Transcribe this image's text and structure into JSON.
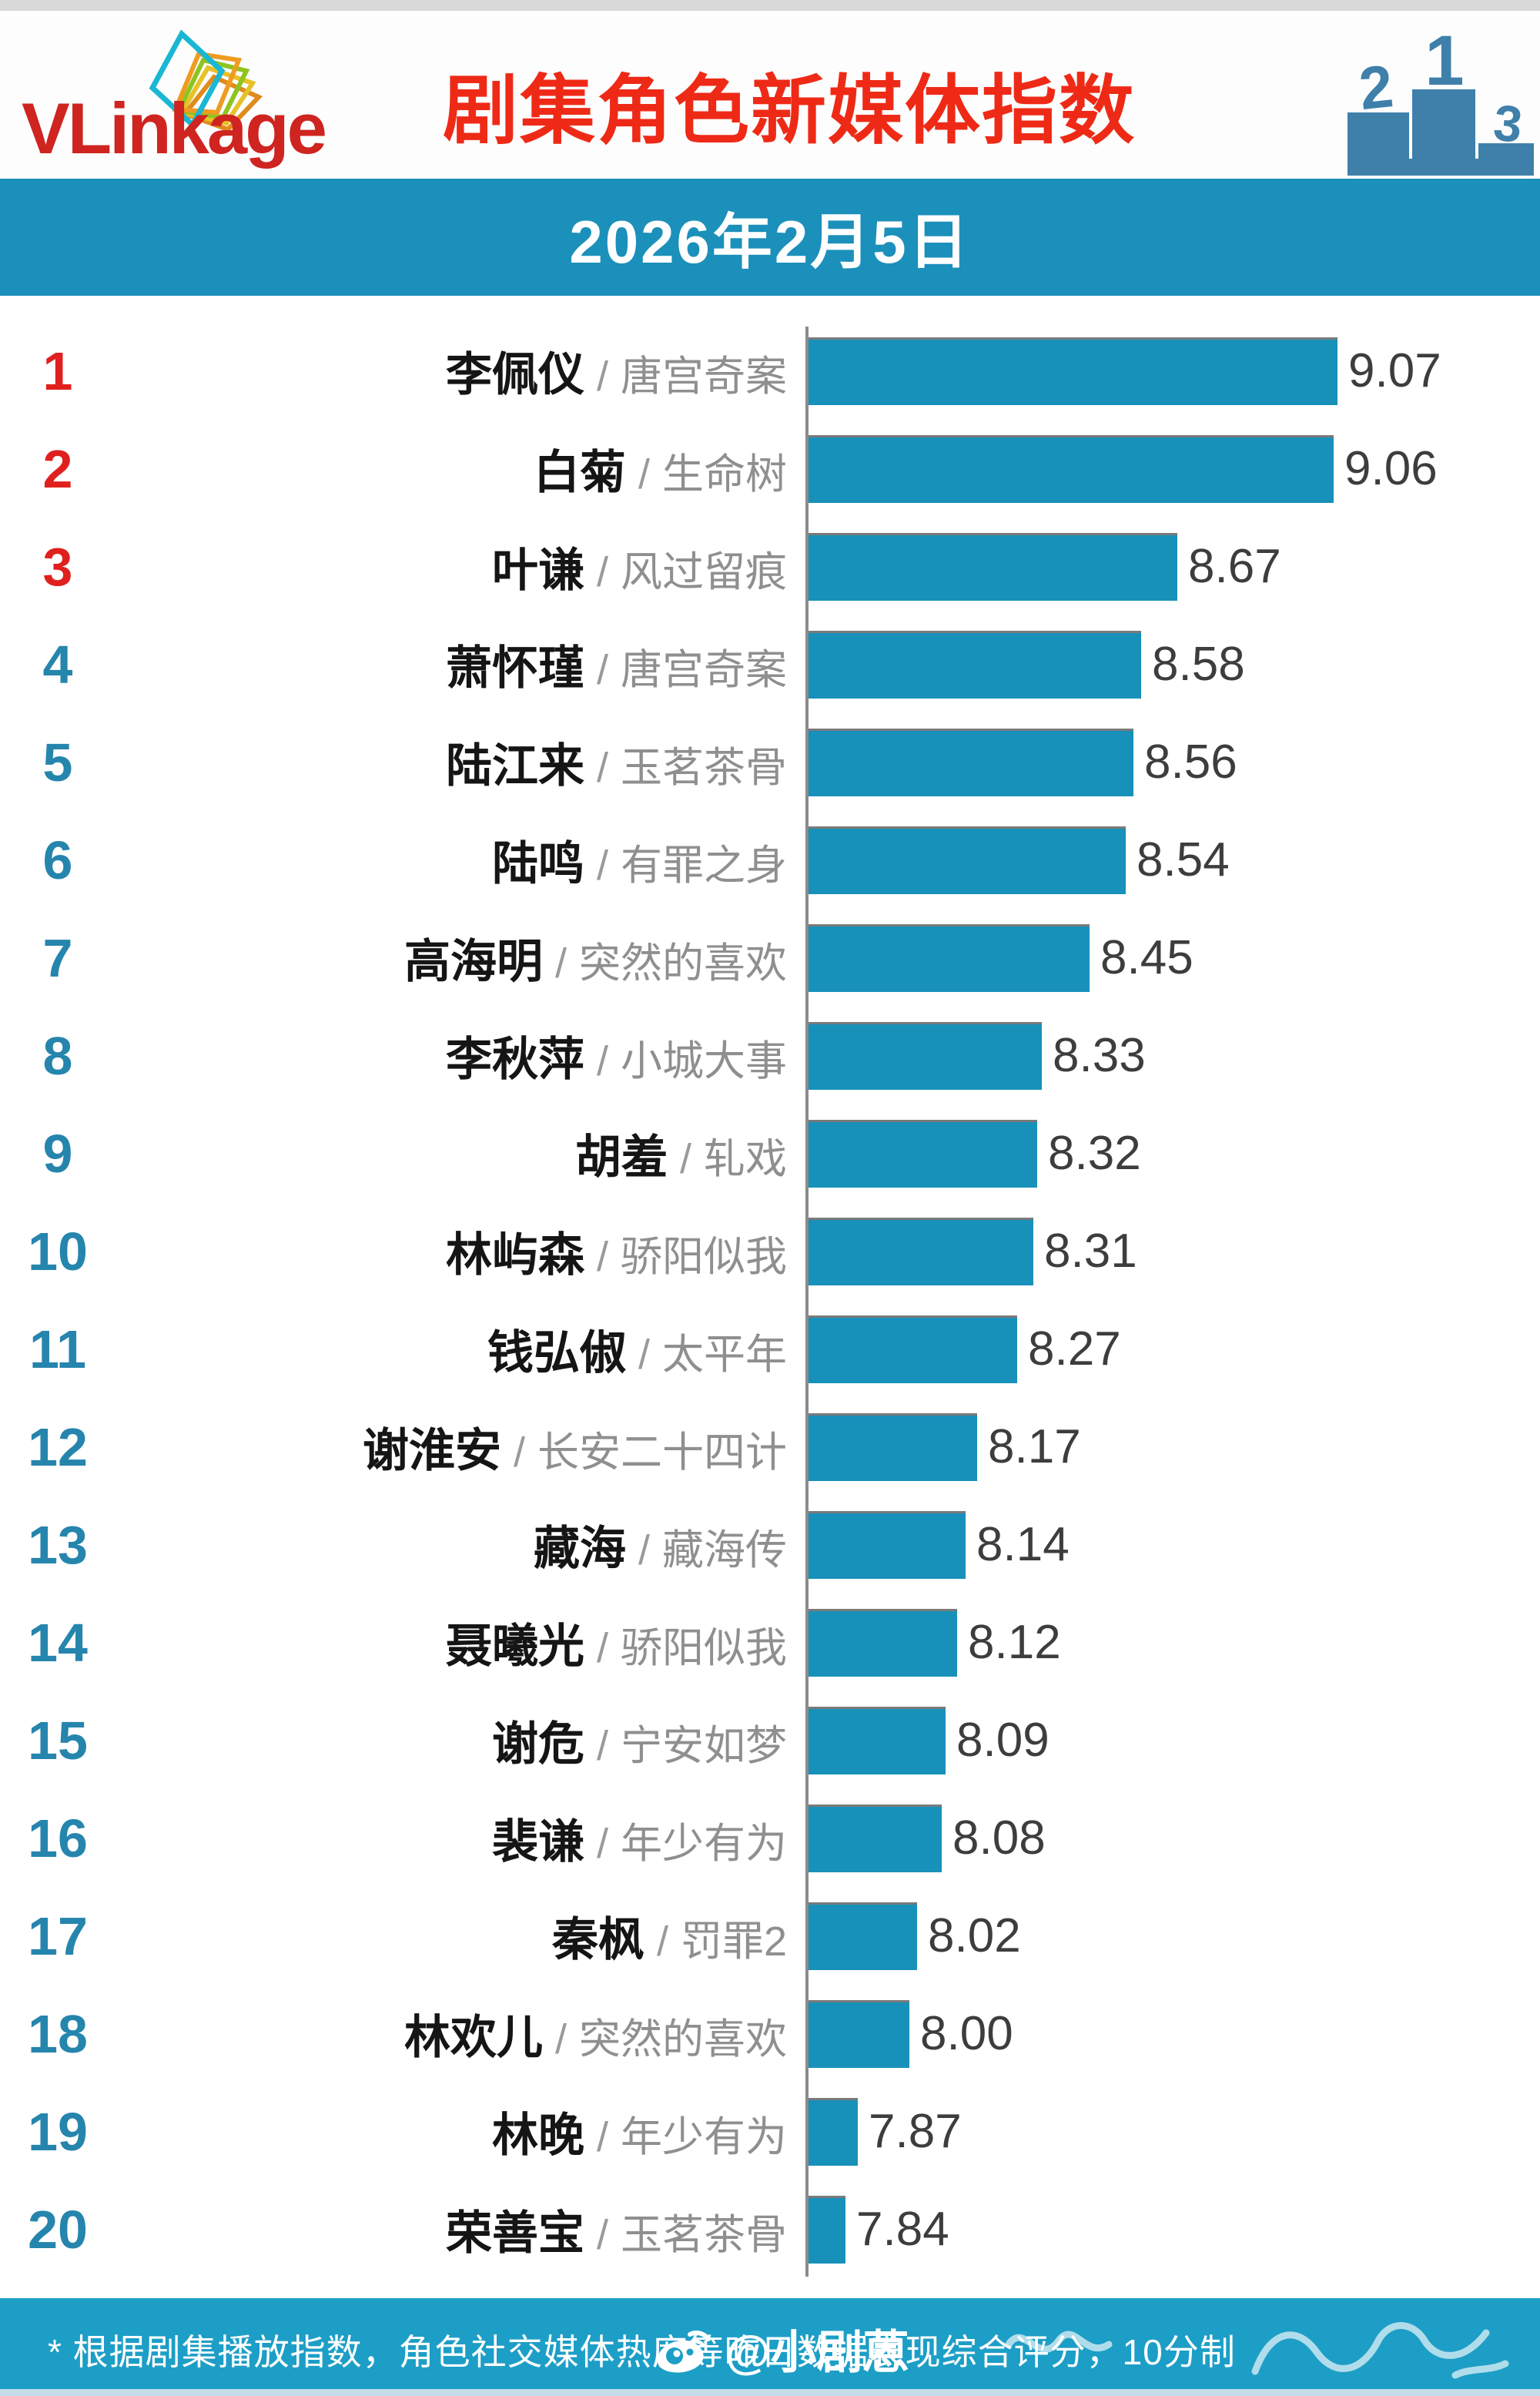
{
  "header": {
    "logo_text": "VLinkage",
    "title": "剧集角色新媒体指数",
    "podium": {
      "first": "1",
      "second": "2",
      "third": "3"
    }
  },
  "date_banner": "2026年2月5日",
  "chart_data": {
    "type": "bar",
    "orientation": "horizontal",
    "axis_min": 7.74,
    "axis_max": 9.07,
    "bar_color": "#1791ba",
    "separator": "/",
    "rows": [
      {
        "rank": 1,
        "name": "李佩仪",
        "drama": "唐宫奇案",
        "value": 9.07,
        "label": "9.07"
      },
      {
        "rank": 2,
        "name": "白菊",
        "drama": "生命树",
        "value": 9.06,
        "label": "9.06"
      },
      {
        "rank": 3,
        "name": "叶谦",
        "drama": "风过留痕",
        "value": 8.67,
        "label": "8.67"
      },
      {
        "rank": 4,
        "name": "萧怀瑾",
        "drama": "唐宫奇案",
        "value": 8.58,
        "label": "8.58"
      },
      {
        "rank": 5,
        "name": "陆江来",
        "drama": "玉茗茶骨",
        "value": 8.56,
        "label": "8.56"
      },
      {
        "rank": 6,
        "name": "陆鸣",
        "drama": "有罪之身",
        "value": 8.54,
        "label": "8.54"
      },
      {
        "rank": 7,
        "name": "高海明",
        "drama": "突然的喜欢",
        "value": 8.45,
        "label": "8.45"
      },
      {
        "rank": 8,
        "name": "李秋萍",
        "drama": "小城大事",
        "value": 8.33,
        "label": "8.33"
      },
      {
        "rank": 9,
        "name": "胡羞",
        "drama": "轧戏",
        "value": 8.32,
        "label": "8.32"
      },
      {
        "rank": 10,
        "name": "林屿森",
        "drama": "骄阳似我",
        "value": 8.31,
        "label": "8.31"
      },
      {
        "rank": 11,
        "name": "钱弘俶",
        "drama": "太平年",
        "value": 8.27,
        "label": "8.27"
      },
      {
        "rank": 12,
        "name": "谢淮安",
        "drama": "长安二十四计",
        "value": 8.17,
        "label": "8.17"
      },
      {
        "rank": 13,
        "name": "藏海",
        "drama": "藏海传",
        "value": 8.14,
        "label": "8.14"
      },
      {
        "rank": 14,
        "name": "聂曦光",
        "drama": "骄阳似我",
        "value": 8.12,
        "label": "8.12"
      },
      {
        "rank": 15,
        "name": "谢危",
        "drama": "宁安如梦",
        "value": 8.09,
        "label": "8.09"
      },
      {
        "rank": 16,
        "name": "裴谦",
        "drama": "年少有为",
        "value": 8.08,
        "label": "8.08"
      },
      {
        "rank": 17,
        "name": "秦枫",
        "drama": "罚罪2",
        "value": 8.02,
        "label": "8.02"
      },
      {
        "rank": 18,
        "name": "林欢儿",
        "drama": "突然的喜欢",
        "value": 8.0,
        "label": "8.00"
      },
      {
        "rank": 19,
        "name": "林晚",
        "drama": "年少有为",
        "value": 7.87,
        "label": "7.87"
      },
      {
        "rank": 20,
        "name": "荣善宝",
        "drama": "玉茗茶骨",
        "value": 7.84,
        "label": "7.84"
      }
    ],
    "title": "剧集角色新媒体指数",
    "subtitle": "2026年2月5日"
  },
  "footer": {
    "note": "* 根据剧集播放指数，角色社交媒体热度等昨日数据表现综合评分，10分制",
    "watermark": "@小剧蒽"
  },
  "colors": {
    "accent_red": "#ee2a17",
    "teal": "#1b90ba",
    "bar": "#1791ba",
    "rank_blue": "#2585ad",
    "podium_blue": "#3f80aa"
  }
}
